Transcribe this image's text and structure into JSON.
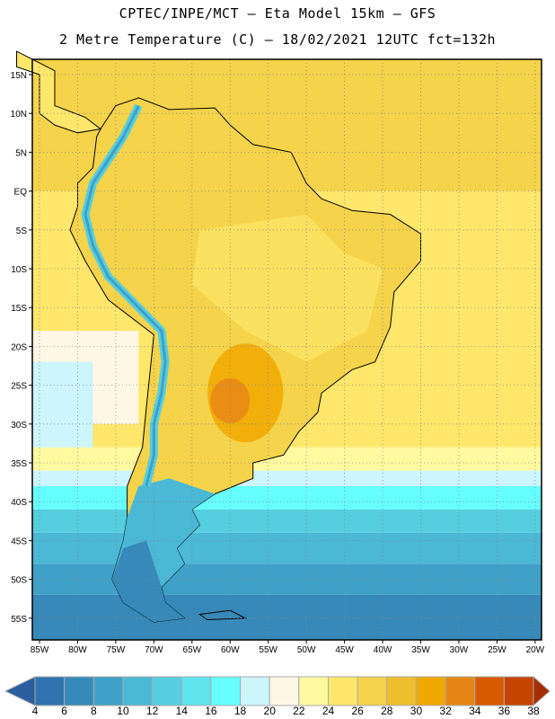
{
  "header": {
    "title_line1": "CPTEC/INPE/MCT –  Eta Model 15km – GFS",
    "title_line2": "2 Metre Temperature (C) – 18/02/2021 12UTC fct=132h"
  },
  "map": {
    "lat_ticks": [
      "15N",
      "10N",
      "5N",
      "EQ",
      "5S",
      "10S",
      "15S",
      "20S",
      "25S",
      "30S",
      "35S",
      "40S",
      "45S",
      "50S",
      "55S"
    ],
    "lon_ticks": [
      "85W",
      "80W",
      "75W",
      "70W",
      "65W",
      "60W",
      "55W",
      "50W",
      "45W",
      "40W",
      "35W",
      "30W",
      "25W",
      "20W"
    ]
  },
  "colorbar": {
    "labels": [
      "4",
      "6",
      "8",
      "10",
      "12",
      "14",
      "16",
      "18",
      "20",
      "22",
      "24",
      "26",
      "28",
      "30",
      "32",
      "34",
      "36",
      "38"
    ],
    "under_color": "#2a5e9e",
    "over_color": "#a52e00",
    "colors": [
      "#2f74ae",
      "#3689b8",
      "#3fa0c8",
      "#4bb8d6",
      "#55cedf",
      "#5fe4ee",
      "#66ffff",
      "#ccf5fc",
      "#fff7e6",
      "#fffaa0",
      "#fee76a",
      "#f5d34a",
      "#efbe2c",
      "#f1a800",
      "#e68516",
      "#d85a00",
      "#c44400"
    ]
  }
}
